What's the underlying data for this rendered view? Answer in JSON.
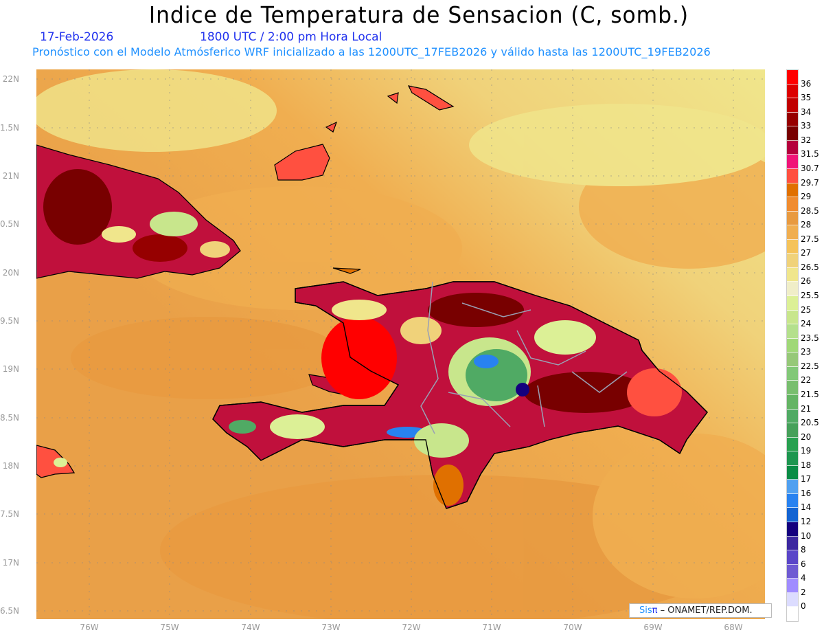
{
  "header": {
    "title": "Indice de Temperatura de Sensacion (C, somb.)",
    "date": "17-Feb-2026",
    "time": "1800 UTC / 2:00 pm Hora Local",
    "subtitle": "Pronóstico con el Modelo Atmósferico WRF inicializado a las 1200UTC_17FEB2026 y válido hasta las  1200UTC_19FEB2026"
  },
  "axes": {
    "lat_labels": [
      "22N",
      "1.5N",
      "21N",
      "0.5N",
      "20N",
      "9.5N",
      "19N",
      "8.5N",
      "18N",
      "7.5N",
      "17N",
      "6.5N"
    ],
    "lon_labels": [
      "76W",
      "75W",
      "74W",
      "73W",
      "72W",
      "71W",
      "70W",
      "69W",
      "68W"
    ]
  },
  "colorbar": {
    "labels": [
      "36",
      "35",
      "34",
      "33",
      "32",
      "31.5",
      "30.7",
      "29.7",
      "29",
      "28.5",
      "28",
      "27.5",
      "27",
      "26.5",
      "26",
      "25.5",
      "25",
      "24",
      "23.5",
      "23",
      "22.5",
      "22",
      "21.5",
      "21",
      "20.5",
      "20",
      "19",
      "18",
      "17",
      "16",
      "14",
      "12",
      "10",
      "8",
      "6",
      "4",
      "2",
      "0"
    ],
    "colors": [
      "#ff0000",
      "#dc0000",
      "#c00000",
      "#960000",
      "#780000",
      "#b4003c",
      "#f01478",
      "#ff5040",
      "#e07000",
      "#f08c30",
      "#e89a40",
      "#f0ae50",
      "#f5c35a",
      "#f0d27a",
      "#f0e68c",
      "#f0eec8",
      "#dcf096",
      "#c8e68c",
      "#b4e08c",
      "#a0d878",
      "#96c878",
      "#82c878",
      "#78be6e",
      "#64b464",
      "#50aa64",
      "#46a05a",
      "#28a050",
      "#1e9650",
      "#0a8c46",
      "#50a0f0",
      "#2882f0",
      "#1464d2",
      "#14007e",
      "#3c28a0",
      "#5a46c8",
      "#6e5ad2",
      "#a08cff",
      "#dcdcff",
      "#ffffff"
    ]
  },
  "credit": {
    "sis": "Sis",
    "pi": "π",
    "org": " – ONAMET/REP.DOM."
  }
}
